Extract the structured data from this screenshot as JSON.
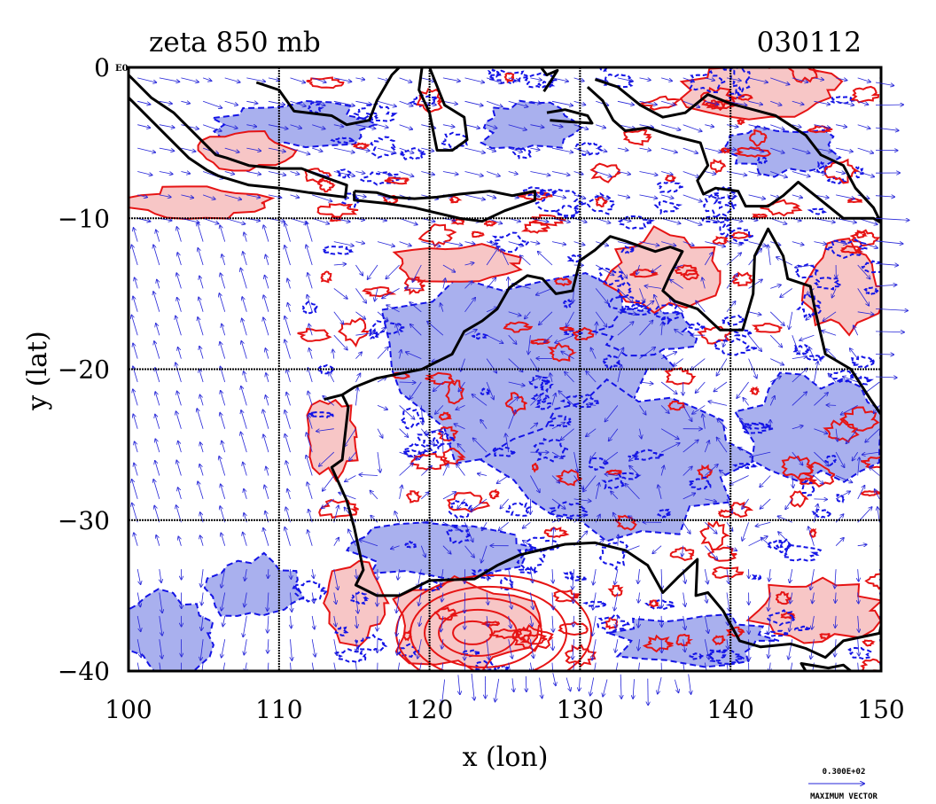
{
  "title": {
    "left": "zeta 850 mb",
    "right": "030112"
  },
  "axes": {
    "xlabel": "x (lon)",
    "ylabel": "y (lat)",
    "x_ticks": [
      "100",
      "110",
      "120",
      "130",
      "140",
      "150"
    ],
    "y_ticks": [
      "0",
      "−10",
      "−20",
      "−30",
      "−40"
    ],
    "x_range": [
      100,
      150
    ],
    "y_range": [
      -40,
      0
    ],
    "corner_label": "E0"
  },
  "legend": {
    "max_vector_value": "0.300E+02",
    "max_vector_label": "MAXIMUM VECTOR"
  },
  "colors": {
    "negative_fill": "#a9b0ee",
    "negative_line": "#1414e6",
    "positive_fill": "#f7c6c6",
    "positive_line": "#e61414",
    "coast": "#000000",
    "grid": "#000000",
    "vector": "#2525d8"
  },
  "chart_data": {
    "type": "map",
    "variable": "relative vorticity (zeta) at 850 mb",
    "date": "030112",
    "region": {
      "lon": [
        100,
        150
      ],
      "lat": [
        -40,
        0
      ]
    },
    "gridlines": {
      "lon": [
        110,
        120,
        130,
        140
      ],
      "lat": [
        -10,
        -20,
        -30
      ]
    },
    "positive_vorticity_regions": [
      {
        "lon": 107.5,
        "lat": -5.5,
        "rx": 3.2,
        "ry": 1.2
      },
      {
        "lon": 104.5,
        "lat": -9.0,
        "rx": 4.5,
        "ry": 1.0
      },
      {
        "lon": 121.5,
        "lat": -13.0,
        "rx": 4.0,
        "ry": 1.2
      },
      {
        "lon": 135.5,
        "lat": -13.5,
        "rx": 3.5,
        "ry": 2.5
      },
      {
        "lon": 147.5,
        "lat": -14.5,
        "rx": 2.5,
        "ry": 3.0
      },
      {
        "lon": 113.5,
        "lat": -24.5,
        "rx": 1.8,
        "ry": 2.5
      },
      {
        "lon": 122.5,
        "lat": -37.0,
        "rx": 5.0,
        "ry": 2.8
      },
      {
        "lon": 115.0,
        "lat": -35.5,
        "rx": 2.0,
        "ry": 2.5
      },
      {
        "lon": 145.5,
        "lat": -36.0,
        "rx": 4.0,
        "ry": 2.0
      },
      {
        "lon": 142.0,
        "lat": -1.5,
        "rx": 5.0,
        "ry": 1.8
      }
    ],
    "negative_vorticity_regions": [
      {
        "lon": 111.0,
        "lat": -3.8,
        "rx": 5.0,
        "ry": 1.4
      },
      {
        "lon": 126.0,
        "lat": -20.0,
        "rx": 9.0,
        "ry": 6.0
      },
      {
        "lon": 133.0,
        "lat": -26.0,
        "rx": 8.0,
        "ry": 5.0
      },
      {
        "lon": 145.5,
        "lat": -24.0,
        "rx": 4.5,
        "ry": 3.5
      },
      {
        "lon": 134.5,
        "lat": -17.5,
        "rx": 3.0,
        "ry": 1.5
      },
      {
        "lon": 102.5,
        "lat": -37.5,
        "rx": 3.0,
        "ry": 2.5
      },
      {
        "lon": 108.5,
        "lat": -34.5,
        "rx": 3.0,
        "ry": 2.0
      },
      {
        "lon": 137.5,
        "lat": -38.0,
        "rx": 5.0,
        "ry": 1.6
      },
      {
        "lon": 120.5,
        "lat": -32.0,
        "rx": 6.0,
        "ry": 1.8
      },
      {
        "lon": 126.5,
        "lat": -4.0,
        "rx": 3.0,
        "ry": 1.5
      },
      {
        "lon": 143.5,
        "lat": -5.5,
        "rx": 3.5,
        "ry": 1.5
      }
    ],
    "coastlines": {
      "australia": [
        [
          113.0,
          -22.0
        ],
        [
          114.2,
          -21.7
        ],
        [
          114.6,
          -22.5
        ],
        [
          114.2,
          -26.0
        ],
        [
          113.5,
          -26.5
        ],
        [
          114.5,
          -28.7
        ],
        [
          115.0,
          -30.5
        ],
        [
          115.6,
          -33.3
        ],
        [
          115.1,
          -34.3
        ],
        [
          116.5,
          -35.0
        ],
        [
          118.0,
          -35.0
        ],
        [
          120.0,
          -34.0
        ],
        [
          123.0,
          -33.9
        ],
        [
          124.5,
          -33.0
        ],
        [
          126.0,
          -32.3
        ],
        [
          129.0,
          -31.6
        ],
        [
          131.0,
          -31.5
        ],
        [
          133.0,
          -32.0
        ],
        [
          134.5,
          -33.0
        ],
        [
          135.5,
          -34.8
        ],
        [
          136.5,
          -33.8
        ],
        [
          137.8,
          -32.6
        ],
        [
          137.7,
          -35.0
        ],
        [
          138.5,
          -34.8
        ],
        [
          139.5,
          -36.0
        ],
        [
          140.6,
          -38.0
        ],
        [
          142.0,
          -38.4
        ],
        [
          144.0,
          -38.2
        ],
        [
          145.0,
          -38.5
        ],
        [
          146.3,
          -39.1
        ],
        [
          147.5,
          -38.0
        ],
        [
          149.9,
          -37.5
        ],
        [
          150.0,
          -37.0
        ]
      ],
      "north_coast": [
        [
          150.0,
          -23.0
        ],
        [
          149.3,
          -22.0
        ],
        [
          148.0,
          -20.0
        ],
        [
          146.3,
          -19.0
        ],
        [
          145.6,
          -16.0
        ],
        [
          145.3,
          -14.5
        ],
        [
          143.8,
          -14.0
        ],
        [
          143.5,
          -12.5
        ],
        [
          142.5,
          -10.7
        ],
        [
          141.6,
          -12.5
        ],
        [
          141.5,
          -15.0
        ],
        [
          140.8,
          -17.4
        ],
        [
          139.3,
          -17.4
        ],
        [
          137.8,
          -16.0
        ],
        [
          136.3,
          -15.5
        ],
        [
          135.5,
          -14.8
        ],
        [
          136.0,
          -13.7
        ],
        [
          136.8,
          -12.2
        ],
        [
          136.0,
          -11.9
        ],
        [
          135.0,
          -12.2
        ],
        [
          133.0,
          -11.5
        ],
        [
          132.0,
          -11.2
        ],
        [
          131.0,
          -12.1
        ],
        [
          130.0,
          -12.8
        ],
        [
          129.5,
          -14.8
        ],
        [
          128.4,
          -15.0
        ],
        [
          127.5,
          -14.0
        ],
        [
          126.5,
          -13.8
        ],
        [
          125.3,
          -14.6
        ],
        [
          124.5,
          -16.0
        ],
        [
          123.5,
          -16.8
        ],
        [
          122.3,
          -17.5
        ],
        [
          121.5,
          -19.0
        ],
        [
          119.5,
          -20.0
        ],
        [
          118.0,
          -20.3
        ],
        [
          116.5,
          -20.6
        ],
        [
          115.0,
          -21.2
        ],
        [
          114.2,
          -21.7
        ]
      ],
      "java_sumatra": [
        [
          100.0,
          -0.5
        ],
        [
          101.5,
          -2.0
        ],
        [
          103.0,
          -3.0
        ],
        [
          104.5,
          -4.5
        ],
        [
          105.8,
          -5.8
        ],
        [
          106.5,
          -6.0
        ],
        [
          108.0,
          -6.5
        ],
        [
          110.0,
          -6.7
        ],
        [
          111.5,
          -6.7
        ],
        [
          112.8,
          -7.2
        ],
        [
          114.5,
          -7.8
        ],
        [
          114.4,
          -8.6
        ],
        [
          112.0,
          -8.3
        ],
        [
          110.0,
          -8.0
        ],
        [
          108.0,
          -7.8
        ],
        [
          106.0,
          -7.2
        ],
        [
          105.2,
          -6.8
        ],
        [
          104.0,
          -6.0
        ],
        [
          102.5,
          -4.5
        ],
        [
          100.8,
          -2.8
        ],
        [
          100.0,
          -2.0
        ]
      ],
      "lesser_sunda": [
        [
          115.0,
          -8.2
        ],
        [
          116.5,
          -8.3
        ],
        [
          117.5,
          -8.6
        ],
        [
          119.0,
          -8.7
        ],
        [
          120.5,
          -8.6
        ],
        [
          122.0,
          -8.4
        ],
        [
          124.0,
          -8.2
        ],
        [
          125.5,
          -8.5
        ],
        [
          127.0,
          -8.2
        ],
        [
          127.0,
          -8.8
        ],
        [
          125.0,
          -9.5
        ],
        [
          123.5,
          -10.2
        ],
        [
          122.0,
          -10.0
        ],
        [
          119.0,
          -9.3
        ],
        [
          117.0,
          -9.0
        ],
        [
          115.0,
          -8.8
        ],
        [
          115.0,
          -8.2
        ]
      ],
      "borneo_south": [
        [
          108.5,
          -1.0
        ],
        [
          110.0,
          -1.5
        ],
        [
          111.0,
          -2.9
        ],
        [
          113.5,
          -3.2
        ],
        [
          114.5,
          -3.8
        ],
        [
          116.0,
          -3.5
        ],
        [
          116.5,
          -2.2
        ],
        [
          117.5,
          -0.5
        ],
        [
          118.0,
          0.0
        ]
      ],
      "sulawesi": [
        [
          120.0,
          0.0
        ],
        [
          120.6,
          -1.5
        ],
        [
          121.0,
          -2.5
        ],
        [
          122.3,
          -3.3
        ],
        [
          122.5,
          -4.8
        ],
        [
          121.5,
          -5.5
        ],
        [
          120.5,
          -5.5
        ],
        [
          120.0,
          -3.0
        ],
        [
          119.3,
          -1.5
        ],
        [
          119.5,
          0.0
        ]
      ],
      "new_guinea": [
        [
          131.0,
          -0.8
        ],
        [
          132.5,
          -1.3
        ],
        [
          134.0,
          -2.5
        ],
        [
          135.5,
          -3.3
        ],
        [
          137.0,
          -3.0
        ],
        [
          138.5,
          -1.8
        ],
        [
          140.0,
          -2.4
        ],
        [
          141.5,
          -2.8
        ],
        [
          143.0,
          -3.2
        ],
        [
          145.0,
          -4.5
        ],
        [
          146.0,
          -5.8
        ],
        [
          147.5,
          -6.5
        ],
        [
          148.3,
          -8.0
        ],
        [
          149.5,
          -9.3
        ],
        [
          150.0,
          -10.3
        ],
        [
          149.5,
          -10.0
        ],
        [
          147.5,
          -10.0
        ],
        [
          146.0,
          -8.8
        ],
        [
          144.5,
          -7.6
        ],
        [
          143.5,
          -8.5
        ],
        [
          142.5,
          -9.2
        ],
        [
          141.0,
          -9.2
        ],
        [
          140.5,
          -8.2
        ],
        [
          139.0,
          -8.0
        ],
        [
          138.2,
          -8.4
        ],
        [
          137.8,
          -7.5
        ],
        [
          138.5,
          -6.5
        ],
        [
          138.0,
          -5.0
        ],
        [
          136.0,
          -4.5
        ],
        [
          134.5,
          -4.0
        ],
        [
          133.0,
          -4.2
        ],
        [
          132.2,
          -3.5
        ],
        [
          131.5,
          -2.2
        ],
        [
          130.5,
          -1.3
        ]
      ],
      "seram": [
        [
          127.8,
          -3.0
        ],
        [
          129.0,
          -2.8
        ],
        [
          130.5,
          -3.2
        ],
        [
          130.8,
          -3.7
        ],
        [
          129.2,
          -3.6
        ],
        [
          128.0,
          -3.5
        ]
      ],
      "halmahera": [
        [
          127.4,
          0.0
        ],
        [
          127.8,
          -0.5
        ],
        [
          128.5,
          -0.2
        ],
        [
          128.0,
          -1.0
        ],
        [
          127.6,
          -1.6
        ]
      ],
      "tasmania_edge": [
        [
          145.0,
          -40.0
        ],
        [
          144.7,
          -39.5
        ],
        [
          146.5,
          -39.8
        ],
        [
          147.5,
          -39.6
        ],
        [
          148.0,
          -40.0
        ]
      ]
    },
    "wind_vectors": {
      "source": "850 mb wind field",
      "max_vector": 30.0
    }
  }
}
